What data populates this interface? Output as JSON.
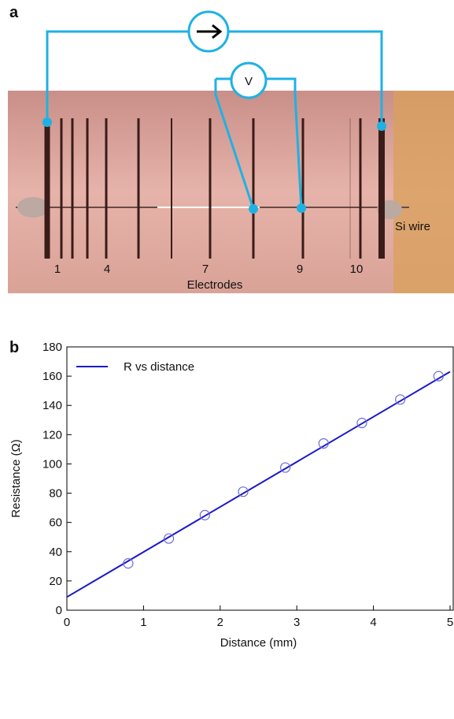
{
  "panel_labels": [
    "a",
    "b"
  ],
  "photo": {
    "electrode_labels": [
      "1",
      "4",
      "7",
      "9",
      "10"
    ],
    "electrodes_caption": "Electrodes",
    "wire_label": "Si wire",
    "voltmeter_label": "V"
  },
  "chart_data": {
    "type": "scatter",
    "x_label": "Distance (mm)",
    "y_label": "Resistance (Ω)",
    "series": [
      {
        "name": "R vs distance",
        "color": "#1a1ac8",
        "style": "line",
        "x": [
          0,
          5
        ],
        "values": [
          9,
          163
        ]
      },
      {
        "color": "#6a6ad8",
        "style": "marker",
        "x": [
          0.8,
          1.33,
          1.8,
          2.3,
          2.85,
          3.35,
          3.85,
          4.35,
          4.85
        ],
        "values": [
          32,
          49,
          65,
          81,
          97.5,
          114,
          128,
          144,
          160
        ]
      }
    ],
    "xlim": [
      0,
      5
    ],
    "xticks": [
      0,
      1,
      2,
      3,
      4,
      5
    ],
    "ylim": [
      0,
      180
    ],
    "yticks": [
      0,
      20,
      40,
      60,
      80,
      100,
      120,
      140,
      160,
      180
    ],
    "legend": "upper-left"
  }
}
